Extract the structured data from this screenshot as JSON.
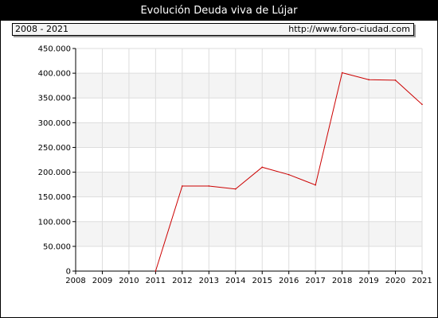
{
  "header": {
    "title": "Evolución Deuda viva de Lújar",
    "period": "2008 - 2021",
    "url": "http://www.foro-ciudad.com"
  },
  "colors": {
    "line": "#cc0000",
    "band": "#f4f4f4",
    "grid": "#dddddd"
  },
  "chart_data": {
    "type": "line",
    "title": "Evolución Deuda viva de Lújar",
    "xlabel": "",
    "ylabel": "",
    "x": [
      2008,
      2009,
      2010,
      2011,
      2012,
      2013,
      2014,
      2015,
      2016,
      2017,
      2018,
      2019,
      2020,
      2021
    ],
    "ylim": [
      0,
      450000
    ],
    "yticks": [
      0,
      50000,
      100000,
      150000,
      200000,
      250000,
      300000,
      350000,
      400000,
      450000
    ],
    "ytick_labels": [
      "0",
      "50.000",
      "100.000",
      "150.000",
      "200.000",
      "250.000",
      "300.000",
      "350.000",
      "400.000",
      "450.000"
    ],
    "grid": true,
    "series": [
      {
        "x": [
          2011,
          2012,
          2013,
          2014,
          2015,
          2016,
          2017,
          2018,
          2019,
          2020,
          2021
        ],
        "values": [
          0,
          172000,
          172000,
          166000,
          210000,
          195000,
          174000,
          401000,
          387000,
          386000,
          337000
        ]
      }
    ]
  }
}
